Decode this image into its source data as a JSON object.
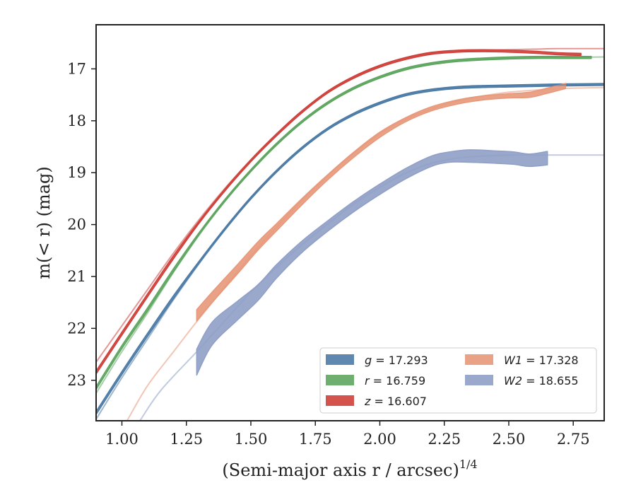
{
  "chart_data": {
    "type": "line",
    "title": "",
    "xlabel": "(Semi-major axis r / arcsec)",
    "xlabel_sup": "1/4",
    "ylabel": "m(< r) (mag)",
    "xlim": [
      0.9,
      2.87
    ],
    "ylim": [
      23.78,
      16.15
    ],
    "y_inverted": true,
    "grid": false,
    "legend_position": "lower-right",
    "x_ticks": [
      "1.00",
      "1.25",
      "1.50",
      "1.75",
      "2.00",
      "2.25",
      "2.50",
      "2.75"
    ],
    "y_ticks": [
      "17",
      "18",
      "19",
      "20",
      "21",
      "22",
      "23"
    ],
    "series": [
      {
        "id": "g",
        "label_var": "g",
        "label_val": "= 17.293",
        "color": "#4c7ba6",
        "model_x": [
          0.9,
          1.0,
          1.1,
          1.2,
          1.3,
          1.4,
          1.5,
          1.6,
          1.7,
          1.8,
          1.9,
          2.0,
          2.1,
          2.2,
          2.3,
          2.4,
          2.5,
          2.6,
          2.7,
          2.87
        ],
        "model_y": [
          23.75,
          22.95,
          22.2,
          21.45,
          20.75,
          20.1,
          19.5,
          18.98,
          18.52,
          18.15,
          17.87,
          17.66,
          17.5,
          17.41,
          17.36,
          17.34,
          17.33,
          17.32,
          17.31,
          17.3
        ],
        "data_x": [
          0.9,
          1.0,
          1.1,
          1.2,
          1.3,
          1.4,
          1.5,
          1.6,
          1.7,
          1.8,
          1.9,
          2.0,
          2.1,
          2.2,
          2.3,
          2.4,
          2.5,
          2.6,
          2.7,
          2.87
        ],
        "data_y": [
          23.63,
          22.86,
          22.12,
          21.4,
          20.72,
          20.08,
          19.49,
          18.97,
          18.52,
          18.15,
          17.87,
          17.66,
          17.5,
          17.41,
          17.36,
          17.34,
          17.33,
          17.32,
          17.31,
          17.3
        ],
        "data_err": [
          0.03,
          0.03,
          0.03,
          0.03,
          0.02,
          0.02,
          0.02,
          0.02,
          0.02,
          0.02,
          0.02,
          0.02,
          0.02,
          0.02,
          0.02,
          0.02,
          0.02,
          0.02,
          0.02,
          0.02
        ]
      },
      {
        "id": "r",
        "label_var": "r",
        "label_val": "= 16.759",
        "color": "#5ea660",
        "model_x": [
          0.9,
          1.0,
          1.1,
          1.2,
          1.3,
          1.4,
          1.5,
          1.6,
          1.7,
          1.8,
          1.9,
          2.0,
          2.1,
          2.2,
          2.3,
          2.4,
          2.5,
          2.6,
          2.7,
          2.87
        ],
        "model_y": [
          23.25,
          22.45,
          21.7,
          20.92,
          20.2,
          19.55,
          18.97,
          18.46,
          18.02,
          17.65,
          17.37,
          17.16,
          17.0,
          16.9,
          16.84,
          16.81,
          16.79,
          16.78,
          16.78,
          16.77
        ],
        "data_x": [
          0.9,
          1.0,
          1.1,
          1.2,
          1.3,
          1.4,
          1.5,
          1.6,
          1.7,
          1.8,
          1.9,
          2.0,
          2.1,
          2.2,
          2.3,
          2.4,
          2.5,
          2.6,
          2.7,
          2.82
        ],
        "data_y": [
          23.15,
          22.36,
          21.63,
          20.88,
          20.17,
          19.53,
          18.96,
          18.45,
          18.01,
          17.65,
          17.37,
          17.16,
          17.0,
          16.9,
          16.84,
          16.81,
          16.79,
          16.78,
          16.78,
          16.78
        ],
        "data_err": [
          0.03,
          0.03,
          0.03,
          0.03,
          0.02,
          0.02,
          0.02,
          0.02,
          0.02,
          0.02,
          0.02,
          0.02,
          0.02,
          0.02,
          0.02,
          0.02,
          0.02,
          0.02,
          0.02,
          0.02
        ]
      },
      {
        "id": "z",
        "label_var": "z",
        "label_val": "= 16.607",
        "color": "#d0403a",
        "model_x": [
          0.9,
          1.0,
          1.1,
          1.2,
          1.3,
          1.4,
          1.5,
          1.6,
          1.7,
          1.8,
          1.9,
          2.0,
          2.1,
          2.2,
          2.3,
          2.4,
          2.5,
          2.6,
          2.7,
          2.87
        ],
        "model_y": [
          22.65,
          21.95,
          21.25,
          20.55,
          19.9,
          19.3,
          18.75,
          18.25,
          17.8,
          17.43,
          17.15,
          16.94,
          16.79,
          16.7,
          16.66,
          16.64,
          16.63,
          16.62,
          16.61,
          16.61
        ],
        "data_x": [
          0.9,
          1.0,
          1.1,
          1.2,
          1.3,
          1.4,
          1.5,
          1.6,
          1.7,
          1.8,
          1.9,
          2.0,
          2.1,
          2.2,
          2.3,
          2.4,
          2.5,
          2.6,
          2.7,
          2.78
        ],
        "data_y": [
          22.85,
          22.1,
          21.36,
          20.63,
          19.95,
          19.33,
          18.77,
          18.27,
          17.82,
          17.44,
          17.16,
          16.95,
          16.8,
          16.7,
          16.66,
          16.65,
          16.66,
          16.68,
          16.71,
          16.72
        ],
        "data_err": [
          0.03,
          0.03,
          0.03,
          0.03,
          0.02,
          0.02,
          0.02,
          0.02,
          0.02,
          0.02,
          0.02,
          0.02,
          0.02,
          0.02,
          0.02,
          0.02,
          0.02,
          0.02,
          0.02,
          0.02
        ]
      },
      {
        "id": "W1",
        "label_var": "W1",
        "label_val": "= 17.328",
        "color": "#e8987a",
        "model_x": [
          1.02,
          1.1,
          1.2,
          1.29,
          1.4,
          1.5,
          1.6,
          1.7,
          1.8,
          1.9,
          2.0,
          2.1,
          2.2,
          2.3,
          2.4,
          2.5,
          2.6,
          2.7,
          2.87
        ],
        "model_y": [
          23.78,
          23.1,
          22.45,
          21.87,
          21.2,
          20.6,
          20.05,
          19.52,
          19.05,
          18.62,
          18.25,
          17.97,
          17.77,
          17.62,
          17.52,
          17.45,
          17.41,
          17.38,
          17.36
        ],
        "data_x": [
          1.29,
          1.35,
          1.45,
          1.53,
          1.6,
          1.7,
          1.8,
          1.9,
          2.0,
          2.1,
          2.2,
          2.3,
          2.4,
          2.5,
          2.58,
          2.65,
          2.72
        ],
        "data_y": [
          21.75,
          21.4,
          20.85,
          20.4,
          20.05,
          19.55,
          19.08,
          18.65,
          18.27,
          17.98,
          17.77,
          17.64,
          17.56,
          17.52,
          17.5,
          17.42,
          17.33
        ],
        "data_err": [
          0.11,
          0.1,
          0.09,
          0.08,
          0.07,
          0.06,
          0.05,
          0.05,
          0.05,
          0.04,
          0.04,
          0.04,
          0.04,
          0.04,
          0.05,
          0.05,
          0.05
        ]
      },
      {
        "id": "W2",
        "label_var": "W2",
        "label_val": "= 18.655",
        "color": "#8f9fc6",
        "model_x": [
          1.07,
          1.15,
          1.29,
          1.4,
          1.5,
          1.6,
          1.7,
          1.8,
          1.9,
          2.0,
          2.1,
          2.2,
          2.3,
          2.4,
          2.5,
          2.6,
          2.7,
          2.87
        ],
        "model_y": [
          23.78,
          23.2,
          22.45,
          21.85,
          21.3,
          20.82,
          20.38,
          19.98,
          19.6,
          19.28,
          19.01,
          18.82,
          18.72,
          18.68,
          18.66,
          18.66,
          18.66,
          18.66
        ],
        "data_x": [
          1.29,
          1.35,
          1.45,
          1.53,
          1.6,
          1.7,
          1.8,
          1.9,
          2.0,
          2.1,
          2.2,
          2.27,
          2.35,
          2.45,
          2.52,
          2.58,
          2.65
        ],
        "data_y": [
          22.65,
          22.1,
          21.65,
          21.3,
          20.9,
          20.42,
          20.02,
          19.65,
          19.32,
          19.02,
          18.78,
          18.7,
          18.68,
          18.7,
          18.72,
          18.76,
          18.72
        ],
        "data_err": [
          0.25,
          0.22,
          0.18,
          0.15,
          0.13,
          0.11,
          0.1,
          0.1,
          0.1,
          0.1,
          0.1,
          0.1,
          0.12,
          0.12,
          0.12,
          0.12,
          0.13
        ]
      }
    ]
  }
}
